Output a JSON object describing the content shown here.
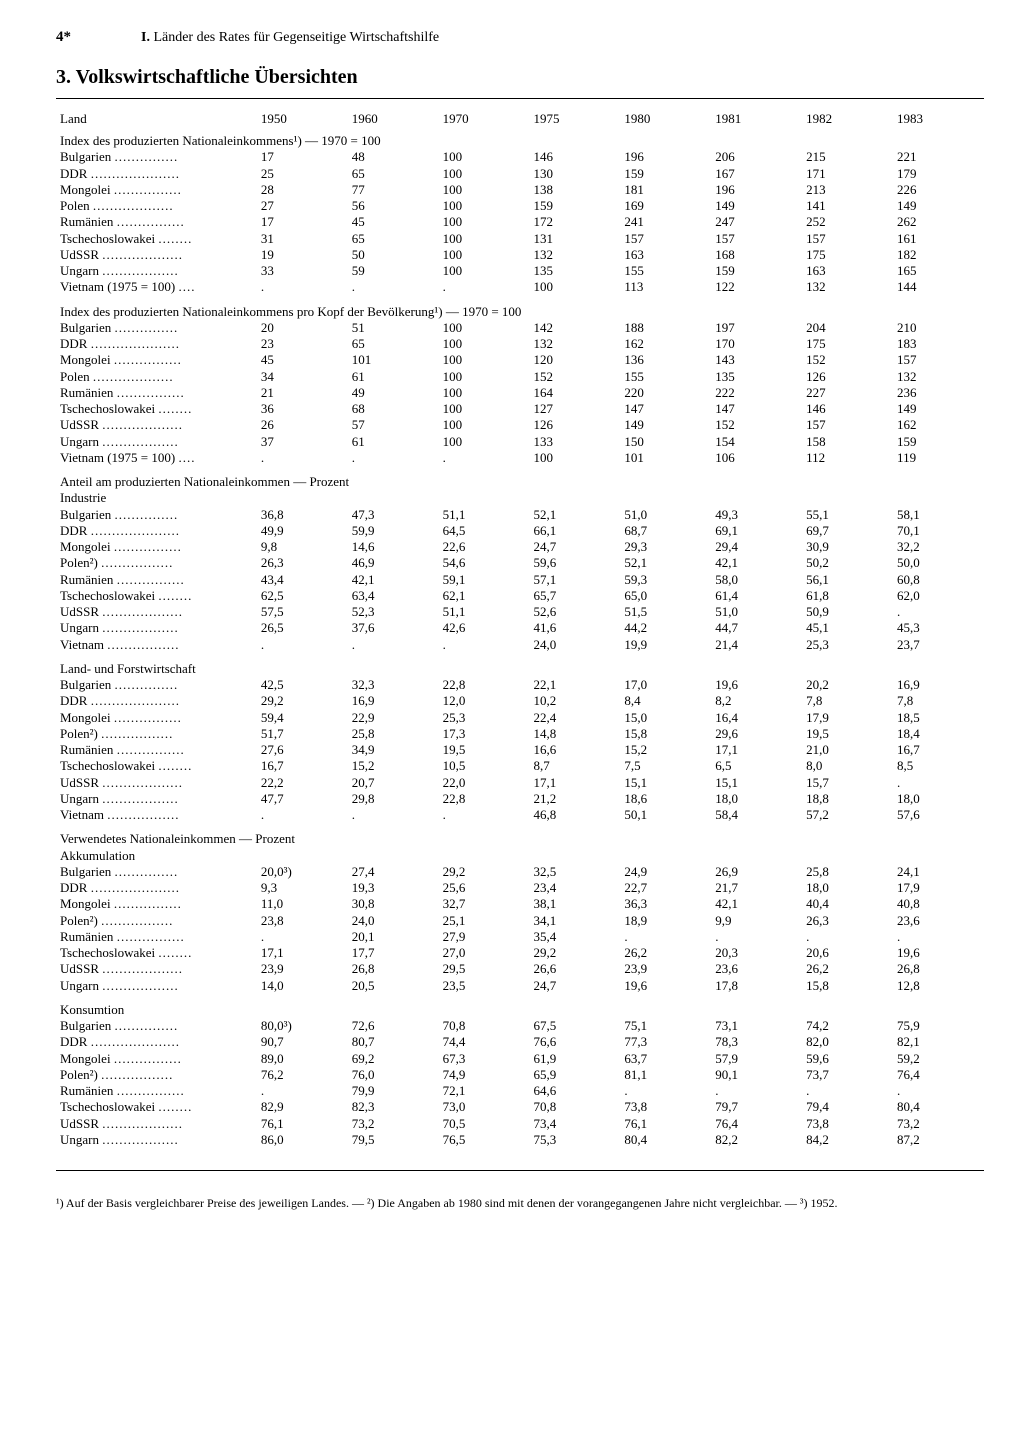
{
  "page_number": "4*",
  "chapter_bold": "I.",
  "chapter_rest": " Länder des Rates für Gegenseitige Wirtschaftshilfe",
  "heading": "3. Volkswirtschaftliche Übersichten",
  "col_land": "Land",
  "years": [
    "1950",
    "1960",
    "1970",
    "1975",
    "1980",
    "1981",
    "1982",
    "1983"
  ],
  "sections": [
    {
      "title": "Index des produzierten Nationaleinkommens¹) — 1970 = 100",
      "rows": [
        {
          "land": "Bulgarien",
          "v": [
            "17",
            "48",
            "100",
            "146",
            "196",
            "206",
            "215",
            "221"
          ]
        },
        {
          "land": "DDR",
          "v": [
            "25",
            "65",
            "100",
            "130",
            "159",
            "167",
            "171",
            "179"
          ]
        },
        {
          "land": "Mongolei",
          "v": [
            "28",
            "77",
            "100",
            "138",
            "181",
            "196",
            "213",
            "226"
          ]
        },
        {
          "land": "Polen",
          "v": [
            "27",
            "56",
            "100",
            "159",
            "169",
            "149",
            "141",
            "149"
          ]
        },
        {
          "land": "Rumänien",
          "v": [
            "17",
            "45",
            "100",
            "172",
            "241",
            "247",
            "252",
            "262"
          ]
        },
        {
          "land": "Tschechoslowakei",
          "v": [
            "31",
            "65",
            "100",
            "131",
            "157",
            "157",
            "157",
            "161"
          ]
        },
        {
          "land": "UdSSR",
          "v": [
            "19",
            "50",
            "100",
            "132",
            "163",
            "168",
            "175",
            "182"
          ]
        },
        {
          "land": "Ungarn",
          "v": [
            "33",
            "59",
            "100",
            "135",
            "155",
            "159",
            "163",
            "165"
          ]
        },
        {
          "land": "Vietnam (1975 = 100)",
          "v": [
            ".",
            ".",
            ".",
            "100",
            "113",
            "122",
            "132",
            "144"
          ]
        }
      ]
    },
    {
      "title": "Index des produzierten Nationaleinkommens pro Kopf der Bevölkerung¹) — 1970 = 100",
      "rows": [
        {
          "land": "Bulgarien",
          "v": [
            "20",
            "51",
            "100",
            "142",
            "188",
            "197",
            "204",
            "210"
          ]
        },
        {
          "land": "DDR",
          "v": [
            "23",
            "65",
            "100",
            "132",
            "162",
            "170",
            "175",
            "183"
          ]
        },
        {
          "land": "Mongolei",
          "v": [
            "45",
            "101",
            "100",
            "120",
            "136",
            "143",
            "152",
            "157"
          ]
        },
        {
          "land": "Polen",
          "v": [
            "34",
            "61",
            "100",
            "152",
            "155",
            "135",
            "126",
            "132"
          ]
        },
        {
          "land": "Rumänien",
          "v": [
            "21",
            "49",
            "100",
            "164",
            "220",
            "222",
            "227",
            "236"
          ]
        },
        {
          "land": "Tschechoslowakei",
          "v": [
            "36",
            "68",
            "100",
            "127",
            "147",
            "147",
            "146",
            "149"
          ]
        },
        {
          "land": "UdSSR",
          "v": [
            "26",
            "57",
            "100",
            "126",
            "149",
            "152",
            "157",
            "162"
          ]
        },
        {
          "land": "Ungarn",
          "v": [
            "37",
            "61",
            "100",
            "133",
            "150",
            "154",
            "158",
            "159"
          ]
        },
        {
          "land": "Vietnam (1975 = 100)",
          "v": [
            ".",
            ".",
            ".",
            "100",
            "101",
            "106",
            "112",
            "119"
          ]
        }
      ]
    },
    {
      "title": "Anteil am produzierten Nationaleinkommen — Prozent",
      "subs": [
        {
          "subtitle": "Industrie",
          "rows": [
            {
              "land": "Bulgarien",
              "v": [
                "36,8",
                "47,3",
                "51,1",
                "52,1",
                "51,0",
                "49,3",
                "55,1",
                "58,1"
              ]
            },
            {
              "land": "DDR",
              "v": [
                "49,9",
                "59,9",
                "64,5",
                "66,1",
                "68,7",
                "69,1",
                "69,7",
                "70,1"
              ]
            },
            {
              "land": "Mongolei",
              "v": [
                "9,8",
                "14,6",
                "22,6",
                "24,7",
                "29,3",
                "29,4",
                "30,9",
                "32,2"
              ]
            },
            {
              "land": "Polen²)",
              "v": [
                "26,3",
                "46,9",
                "54,6",
                "59,6",
                "52,1",
                "42,1",
                "50,2",
                "50,0"
              ]
            },
            {
              "land": "Rumänien",
              "v": [
                "43,4",
                "42,1",
                "59,1",
                "57,1",
                "59,3",
                "58,0",
                "56,1",
                "60,8"
              ]
            },
            {
              "land": "Tschechoslowakei",
              "v": [
                "62,5",
                "63,4",
                "62,1",
                "65,7",
                "65,0",
                "61,4",
                "61,8",
                "62,0"
              ]
            },
            {
              "land": "UdSSR",
              "v": [
                "57,5",
                "52,3",
                "51,1",
                "52,6",
                "51,5",
                "51,0",
                "50,9",
                "."
              ]
            },
            {
              "land": "Ungarn",
              "v": [
                "26,5",
                "37,6",
                "42,6",
                "41,6",
                "44,2",
                "44,7",
                "45,1",
                "45,3"
              ]
            },
            {
              "land": "Vietnam",
              "v": [
                ".",
                ".",
                ".",
                "24,0",
                "19,9",
                "21,4",
                "25,3",
                "23,7"
              ]
            }
          ]
        },
        {
          "subtitle": "Land- und Forstwirtschaft",
          "rows": [
            {
              "land": "Bulgarien",
              "v": [
                "42,5",
                "32,3",
                "22,8",
                "22,1",
                "17,0",
                "19,6",
                "20,2",
                "16,9"
              ]
            },
            {
              "land": "DDR",
              "v": [
                "29,2",
                "16,9",
                "12,0",
                "10,2",
                "8,4",
                "8,2",
                "7,8",
                "7,8"
              ]
            },
            {
              "land": "Mongolei",
              "v": [
                "59,4",
                "22,9",
                "25,3",
                "22,4",
                "15,0",
                "16,4",
                "17,9",
                "18,5"
              ]
            },
            {
              "land": "Polen²)",
              "v": [
                "51,7",
                "25,8",
                "17,3",
                "14,8",
                "15,8",
                "29,6",
                "19,5",
                "18,4"
              ]
            },
            {
              "land": "Rumänien",
              "v": [
                "27,6",
                "34,9",
                "19,5",
                "16,6",
                "15,2",
                "17,1",
                "21,0",
                "16,7"
              ]
            },
            {
              "land": "Tschechoslowakei",
              "v": [
                "16,7",
                "15,2",
                "10,5",
                "8,7",
                "7,5",
                "6,5",
                "8,0",
                "8,5"
              ]
            },
            {
              "land": "UdSSR",
              "v": [
                "22,2",
                "20,7",
                "22,0",
                "17,1",
                "15,1",
                "15,1",
                "15,7",
                "."
              ]
            },
            {
              "land": "Ungarn",
              "v": [
                "47,7",
                "29,8",
                "22,8",
                "21,2",
                "18,6",
                "18,0",
                "18,8",
                "18,0"
              ]
            },
            {
              "land": "Vietnam",
              "v": [
                ".",
                ".",
                ".",
                "46,8",
                "50,1",
                "58,4",
                "57,2",
                "57,6"
              ]
            }
          ]
        }
      ]
    },
    {
      "title": "Verwendetes Nationaleinkommen — Prozent",
      "subs": [
        {
          "subtitle": "Akkumulation",
          "rows": [
            {
              "land": "Bulgarien",
              "v": [
                "20,0³)",
                "27,4",
                "29,2",
                "32,5",
                "24,9",
                "26,9",
                "25,8",
                "24,1"
              ]
            },
            {
              "land": "DDR",
              "v": [
                "9,3",
                "19,3",
                "25,6",
                "23,4",
                "22,7",
                "21,7",
                "18,0",
                "17,9"
              ]
            },
            {
              "land": "Mongolei",
              "v": [
                "11,0",
                "30,8",
                "32,7",
                "38,1",
                "36,3",
                "42,1",
                "40,4",
                "40,8"
              ]
            },
            {
              "land": "Polen²)",
              "v": [
                "23,8",
                "24,0",
                "25,1",
                "34,1",
                "18,9",
                "9,9",
                "26,3",
                "23,6"
              ]
            },
            {
              "land": "Rumänien",
              "v": [
                ".",
                "20,1",
                "27,9",
                "35,4",
                ".",
                ".",
                ".",
                "."
              ]
            },
            {
              "land": "Tschechoslowakei",
              "v": [
                "17,1",
                "17,7",
                "27,0",
                "29,2",
                "26,2",
                "20,3",
                "20,6",
                "19,6"
              ]
            },
            {
              "land": "UdSSR",
              "v": [
                "23,9",
                "26,8",
                "29,5",
                "26,6",
                "23,9",
                "23,6",
                "26,2",
                "26,8"
              ]
            },
            {
              "land": "Ungarn",
              "v": [
                "14,0",
                "20,5",
                "23,5",
                "24,7",
                "19,6",
                "17,8",
                "15,8",
                "12,8"
              ]
            }
          ]
        },
        {
          "subtitle": "Konsumtion",
          "rows": [
            {
              "land": "Bulgarien",
              "v": [
                "80,0³)",
                "72,6",
                "70,8",
                "67,5",
                "75,1",
                "73,1",
                "74,2",
                "75,9"
              ]
            },
            {
              "land": "DDR",
              "v": [
                "90,7",
                "80,7",
                "74,4",
                "76,6",
                "77,3",
                "78,3",
                "82,0",
                "82,1"
              ]
            },
            {
              "land": "Mongolei",
              "v": [
                "89,0",
                "69,2",
                "67,3",
                "61,9",
                "63,7",
                "57,9",
                "59,6",
                "59,2"
              ]
            },
            {
              "land": "Polen²)",
              "v": [
                "76,2",
                "76,0",
                "74,9",
                "65,9",
                "81,1",
                "90,1",
                "73,7",
                "76,4"
              ]
            },
            {
              "land": "Rumänien",
              "v": [
                ".",
                "79,9",
                "72,1",
                "64,6",
                ".",
                ".",
                ".",
                "."
              ]
            },
            {
              "land": "Tschechoslowakei",
              "v": [
                "82,9",
                "82,3",
                "73,0",
                "70,8",
                "73,8",
                "79,7",
                "79,4",
                "80,4"
              ]
            },
            {
              "land": "UdSSR",
              "v": [
                "76,1",
                "73,2",
                "70,5",
                "73,4",
                "76,1",
                "76,4",
                "73,8",
                "73,2"
              ]
            },
            {
              "land": "Ungarn",
              "v": [
                "86,0",
                "79,5",
                "76,5",
                "75,3",
                "80,4",
                "82,2",
                "84,2",
                "87,2"
              ]
            }
          ]
        }
      ]
    }
  ],
  "footnote": "¹) Auf der Basis vergleichbarer Preise des jeweiligen Landes. — ²) Die Angaben ab 1980 sind mit denen der vorangegangenen Jahre nicht vergleichbar. — ³) 1952."
}
